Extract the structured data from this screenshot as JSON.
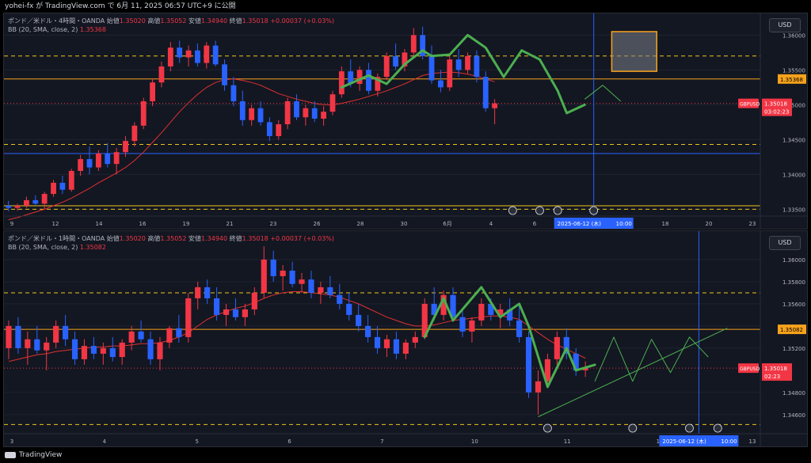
{
  "header": {
    "text": "yohei-fx が TradingView.com で 6月 11, 2025 06:57 UTC+9 に公開"
  },
  "footer": {
    "brand": "TradingView"
  },
  "colors": {
    "up": "#f23645",
    "down": "#2962ff",
    "bb": "#e03030",
    "yellow": "#f0c419",
    "orange": "#f7a21b",
    "green": "#4caf50",
    "vline": "#2962ff",
    "box": "#7b7f8a"
  },
  "chart_data": [
    {
      "type": "candlestick",
      "symbol": "ポンド／米ドル・4時間・OANDA",
      "ohlc": {
        "open_label": "始値",
        "open": "1.35020",
        "high_label": "高値",
        "high": "1.35052",
        "low_label": "安値",
        "low": "1.34940",
        "close_label": "終値",
        "close": "1.35018",
        "change": "+0.00037 (+0.03%)"
      },
      "indicator": "BB (20, SMA, close, 2)",
      "indicator_value": "1.35368",
      "currency": "USD",
      "ylim": [
        1.3347,
        1.3622
      ],
      "y_ticks": [
        "1.36000",
        "1.35500",
        "1.35000",
        "1.34500",
        "1.34000",
        "1.33500"
      ],
      "y_tick_values": [
        1.36,
        1.355,
        1.35,
        1.345,
        1.34,
        1.335
      ],
      "x_ticks": [
        "9",
        "12",
        "14",
        "16",
        "19",
        "21",
        "23",
        "26",
        "28",
        "30",
        "6月",
        "4",
        "6",
        "9",
        "16",
        "18",
        "20",
        "23"
      ],
      "price_label": "1.35368",
      "symbol_tag": "GBPUSD",
      "last_price": "1.35018",
      "countdown": "03:02:23",
      "date_tag": "2025-06-12 (木)",
      "time_tag": "10:00",
      "levels": {
        "yellow_dashed": [
          1.357,
          1.3443,
          1.335
        ],
        "orange_solid": [
          1.3537
        ],
        "blue_solid": [
          1.343
        ],
        "yellow_solid": [
          1.3355
        ],
        "red_dotted": [
          1.3502
        ]
      },
      "candles": [
        [
          1.3355,
          1.3362,
          1.3347,
          1.3352
        ],
        [
          1.3352,
          1.3358,
          1.3348,
          1.3355
        ],
        [
          1.3355,
          1.3368,
          1.3352,
          1.3363
        ],
        [
          1.3363,
          1.337,
          1.3355,
          1.3358
        ],
        [
          1.3358,
          1.3375,
          1.335,
          1.3372
        ],
        [
          1.3372,
          1.3392,
          1.3368,
          1.3388
        ],
        [
          1.3388,
          1.3398,
          1.3372,
          1.3378
        ],
        [
          1.3378,
          1.3408,
          1.3375,
          1.3405
        ],
        [
          1.3405,
          1.3428,
          1.3398,
          1.3422
        ],
        [
          1.3422,
          1.344,
          1.34,
          1.341
        ],
        [
          1.341,
          1.3435,
          1.3405,
          1.343
        ],
        [
          1.343,
          1.3445,
          1.341,
          1.3415
        ],
        [
          1.3415,
          1.3438,
          1.34,
          1.3432
        ],
        [
          1.3432,
          1.3455,
          1.3425,
          1.3448
        ],
        [
          1.3448,
          1.3475,
          1.344,
          1.347
        ],
        [
          1.347,
          1.351,
          1.3465,
          1.3505
        ],
        [
          1.3505,
          1.3538,
          1.3498,
          1.3532
        ],
        [
          1.3532,
          1.3562,
          1.3525,
          1.3555
        ],
        [
          1.3555,
          1.359,
          1.3548,
          1.3582
        ],
        [
          1.3582,
          1.3592,
          1.356,
          1.3568
        ],
        [
          1.3568,
          1.3585,
          1.3555,
          1.3578
        ],
        [
          1.3578,
          1.3588,
          1.3555,
          1.356
        ],
        [
          1.356,
          1.359,
          1.3552,
          1.3585
        ],
        [
          1.3585,
          1.3592,
          1.3555,
          1.3558
        ],
        [
          1.3558,
          1.3565,
          1.352,
          1.3528
        ],
        [
          1.3528,
          1.354,
          1.3498,
          1.3505
        ],
        [
          1.3505,
          1.352,
          1.347,
          1.3478
        ],
        [
          1.3478,
          1.35,
          1.347,
          1.3495
        ],
        [
          1.3495,
          1.3505,
          1.347,
          1.3475
        ],
        [
          1.3475,
          1.3482,
          1.3448,
          1.3455
        ],
        [
          1.3455,
          1.3478,
          1.345,
          1.3472
        ],
        [
          1.3472,
          1.351,
          1.3465,
          1.3505
        ],
        [
          1.3505,
          1.3515,
          1.3478,
          1.3482
        ],
        [
          1.3482,
          1.35,
          1.347,
          1.3495
        ],
        [
          1.3495,
          1.3505,
          1.3475,
          1.348
        ],
        [
          1.348,
          1.3498,
          1.347,
          1.349
        ],
        [
          1.349,
          1.352,
          1.3485,
          1.3515
        ],
        [
          1.3515,
          1.3555,
          1.351,
          1.3548
        ],
        [
          1.3548,
          1.3565,
          1.3525,
          1.353
        ],
        [
          1.353,
          1.3555,
          1.352,
          1.355
        ],
        [
          1.355,
          1.356,
          1.3515,
          1.352
        ],
        [
          1.352,
          1.3545,
          1.3512,
          1.354
        ],
        [
          1.354,
          1.3575,
          1.3535,
          1.357
        ],
        [
          1.357,
          1.3588,
          1.355,
          1.3555
        ],
        [
          1.3555,
          1.358,
          1.3548,
          1.3575
        ],
        [
          1.3575,
          1.361,
          1.357,
          1.36
        ],
        [
          1.36,
          1.3612,
          1.3565,
          1.357
        ],
        [
          1.357,
          1.3585,
          1.353,
          1.3535
        ],
        [
          1.3535,
          1.355,
          1.3518,
          1.3525
        ],
        [
          1.3525,
          1.357,
          1.352,
          1.3565
        ],
        [
          1.3565,
          1.358,
          1.354,
          1.355
        ],
        [
          1.355,
          1.3575,
          1.3545,
          1.357
        ],
        [
          1.357,
          1.3578,
          1.3532,
          1.354
        ],
        [
          1.354,
          1.3548,
          1.349,
          1.3495
        ],
        [
          1.3495,
          1.3508,
          1.3472,
          1.3502
        ]
      ],
      "bb_basis": [
        1.3335,
        1.3338,
        1.3342,
        1.3346,
        1.335,
        1.3355,
        1.336,
        1.3366,
        1.3373,
        1.338,
        1.3388,
        1.3395,
        1.3402,
        1.341,
        1.342,
        1.3432,
        1.3446,
        1.346,
        1.3475,
        1.349,
        1.3503,
        1.3515,
        1.3525,
        1.3532,
        1.3536,
        1.3537,
        1.3535,
        1.3532,
        1.3528,
        1.3522,
        1.3516,
        1.3512,
        1.3508,
        1.3505,
        1.3502,
        1.35,
        1.35,
        1.3502,
        1.3505,
        1.3508,
        1.3512,
        1.3516,
        1.352,
        1.3525,
        1.353,
        1.3536,
        1.3542,
        1.3545,
        1.3546,
        1.3547,
        1.3546,
        1.3544,
        1.3541,
        1.3537,
        1.3533
      ],
      "green_path": [
        [
          37,
          1.3525
        ],
        [
          40,
          1.3542
        ],
        [
          42,
          1.353
        ],
        [
          44,
          1.3558
        ],
        [
          46,
          1.3578
        ],
        [
          47,
          1.357
        ],
        [
          49,
          1.3572
        ],
        [
          51,
          1.36
        ],
        [
          53,
          1.3582
        ],
        [
          55,
          1.354
        ],
        [
          57,
          1.3578
        ],
        [
          59,
          1.3565
        ],
        [
          61,
          1.352
        ],
        [
          62,
          1.3488
        ],
        [
          64,
          1.35
        ]
      ],
      "projection": [
        [
          64,
          1.3508
        ],
        [
          66,
          1.3528
        ],
        [
          68,
          1.3505
        ]
      ],
      "box": {
        "from": 67,
        "to": 72,
        "top": 1.3605,
        "bottom": 1.3548
      },
      "vline_index": 65,
      "total_slots": 84
    },
    {
      "type": "candlestick",
      "symbol": "ポンド／米ドル・1時間・OANDA",
      "ohlc": {
        "open_label": "始値",
        "open": "1.35020",
        "high_label": "高値",
        "high": "1.35052",
        "low_label": "安値",
        "low": "1.34940",
        "close_label": "終値",
        "close": "1.35018",
        "change": "+0.00037 (+0.03%)"
      },
      "indicator": "BB (20, SMA, close, 2)",
      "indicator_value": "1.35082",
      "currency": "USD",
      "ylim": [
        1.3447,
        1.362
      ],
      "y_ticks": [
        "1.36000",
        "1.35800",
        "1.35600",
        "1.35400",
        "1.35200",
        "1.34800",
        "1.34600"
      ],
      "y_tick_values": [
        1.36,
        1.358,
        1.356,
        1.354,
        1.352,
        1.348,
        1.346
      ],
      "x_ticks": [
        "3",
        "4",
        "5",
        "6",
        "7",
        "10",
        "11",
        "12",
        "13"
      ],
      "price_label": "1.35082",
      "symbol_tag": "GBPUSD",
      "last_price": "1.35018",
      "countdown": "02:23",
      "date_tag": "2025-06-12 (木)",
      "time_tag": "10:00",
      "levels": {
        "yellow_dashed": [
          1.357,
          1.3451
        ],
        "orange_solid": [
          1.3537
        ],
        "red_dotted": [
          1.3502
        ]
      },
      "candles": [
        [
          1.352,
          1.3545,
          1.351,
          1.354
        ],
        [
          1.354,
          1.3548,
          1.3515,
          1.352
        ],
        [
          1.352,
          1.3535,
          1.3505,
          1.3528
        ],
        [
          1.3528,
          1.354,
          1.3515,
          1.3518
        ],
        [
          1.3518,
          1.353,
          1.35,
          1.3525
        ],
        [
          1.3525,
          1.3545,
          1.352,
          1.354
        ],
        [
          1.354,
          1.355,
          1.3522,
          1.3528
        ],
        [
          1.3528,
          1.3535,
          1.3505,
          1.351
        ],
        [
          1.351,
          1.3528,
          1.3505,
          1.3522
        ],
        [
          1.3522,
          1.353,
          1.351,
          1.3515
        ],
        [
          1.3515,
          1.3525,
          1.3505,
          1.352
        ],
        [
          1.352,
          1.353,
          1.3508,
          1.3512
        ],
        [
          1.3512,
          1.3528,
          1.3505,
          1.3525
        ],
        [
          1.3525,
          1.354,
          1.3518,
          1.3535
        ],
        [
          1.3535,
          1.3545,
          1.3525,
          1.3528
        ],
        [
          1.3528,
          1.3535,
          1.3505,
          1.351
        ],
        [
          1.351,
          1.353,
          1.35,
          1.3525
        ],
        [
          1.3525,
          1.354,
          1.352,
          1.3538
        ],
        [
          1.3538,
          1.355,
          1.3525,
          1.353
        ],
        [
          1.353,
          1.357,
          1.3525,
          1.3565
        ],
        [
          1.3565,
          1.358,
          1.3555,
          1.3575
        ],
        [
          1.3575,
          1.3582,
          1.356,
          1.3565
        ],
        [
          1.3565,
          1.3575,
          1.3545,
          1.355
        ],
        [
          1.355,
          1.356,
          1.354,
          1.3555
        ],
        [
          1.3555,
          1.3565,
          1.3545,
          1.3548
        ],
        [
          1.3548,
          1.356,
          1.354,
          1.3555
        ],
        [
          1.3555,
          1.3575,
          1.355,
          1.357
        ],
        [
          1.357,
          1.3612,
          1.3565,
          1.36
        ],
        [
          1.36,
          1.3608,
          1.358,
          1.3585
        ],
        [
          1.3585,
          1.3595,
          1.3572,
          1.359
        ],
        [
          1.359,
          1.3598,
          1.3575,
          1.3578
        ],
        [
          1.3578,
          1.3588,
          1.357,
          1.3582
        ],
        [
          1.3582,
          1.359,
          1.3565,
          1.357
        ],
        [
          1.357,
          1.358,
          1.356,
          1.3575
        ],
        [
          1.3575,
          1.3585,
          1.3565,
          1.3568
        ],
        [
          1.3568,
          1.3578,
          1.3555,
          1.356
        ],
        [
          1.356,
          1.357,
          1.3545,
          1.355
        ],
        [
          1.355,
          1.356,
          1.3535,
          1.354
        ],
        [
          1.354,
          1.355,
          1.3525,
          1.353
        ],
        [
          1.353,
          1.354,
          1.3515,
          1.352
        ],
        [
          1.352,
          1.3532,
          1.3512,
          1.3528
        ],
        [
          1.3528,
          1.3535,
          1.351,
          1.3515
        ],
        [
          1.3515,
          1.3528,
          1.351,
          1.3525
        ],
        [
          1.3525,
          1.3535,
          1.352,
          1.353
        ],
        [
          1.353,
          1.3565,
          1.3528,
          1.356
        ],
        [
          1.356,
          1.3575,
          1.3545,
          1.355
        ],
        [
          1.355,
          1.3572,
          1.3545,
          1.3568
        ],
        [
          1.3568,
          1.3575,
          1.3545,
          1.3548
        ],
        [
          1.3548,
          1.3555,
          1.353,
          1.3535
        ],
        [
          1.3535,
          1.3548,
          1.3525,
          1.3545
        ],
        [
          1.3545,
          1.3565,
          1.354,
          1.356
        ],
        [
          1.356,
          1.3565,
          1.3545,
          1.355
        ],
        [
          1.355,
          1.356,
          1.3538,
          1.3555
        ],
        [
          1.3555,
          1.3565,
          1.354,
          1.3545
        ],
        [
          1.3545,
          1.356,
          1.3525,
          1.353
        ],
        [
          1.353,
          1.3535,
          1.3475,
          1.348
        ],
        [
          1.348,
          1.35,
          1.346,
          1.349
        ],
        [
          1.349,
          1.3515,
          1.3485,
          1.351
        ],
        [
          1.351,
          1.3535,
          1.3505,
          1.353
        ],
        [
          1.353,
          1.3538,
          1.351,
          1.3515
        ],
        [
          1.3515,
          1.352,
          1.3495,
          1.35
        ],
        [
          1.35,
          1.3508,
          1.3494,
          1.3502
        ]
      ],
      "bb_basis": [
        1.3508,
        1.351,
        1.3512,
        1.3514,
        1.3515,
        1.3517,
        1.3518,
        1.3519,
        1.352,
        1.3521,
        1.3521,
        1.3522,
        1.3522,
        1.3523,
        1.3524,
        1.3524,
        1.3525,
        1.3527,
        1.353,
        1.3534,
        1.354,
        1.3546,
        1.355,
        1.3553,
        1.3556,
        1.3558,
        1.3561,
        1.3565,
        1.3568,
        1.357,
        1.3571,
        1.3571,
        1.357,
        1.3569,
        1.3568,
        1.3566,
        1.3563,
        1.356,
        1.3556,
        1.3552,
        1.3548,
        1.3545,
        1.3542,
        1.354,
        1.354,
        1.3541,
        1.3543,
        1.3545,
        1.3546,
        1.3547,
        1.3548,
        1.3549,
        1.3549,
        1.3548,
        1.3546,
        1.354,
        1.3534,
        1.3528,
        1.3523,
        1.3519,
        1.3515,
        1.3511
      ],
      "green_path": [
        [
          44,
          1.353
        ],
        [
          46,
          1.3565
        ],
        [
          47,
          1.3545
        ],
        [
          50,
          1.3575
        ],
        [
          52,
          1.3548
        ],
        [
          54,
          1.356
        ],
        [
          55,
          1.354
        ],
        [
          57,
          1.3485
        ],
        [
          59,
          1.352
        ],
        [
          60,
          1.35
        ],
        [
          62,
          1.3505
        ]
      ],
      "projection": [
        [
          62,
          1.349
        ],
        [
          64,
          1.353
        ],
        [
          66,
          1.349
        ],
        [
          68,
          1.3528
        ],
        [
          70,
          1.3498
        ],
        [
          72,
          1.353
        ],
        [
          74,
          1.3512
        ]
      ],
      "trendline": [
        [
          56,
          1.3458
        ],
        [
          76,
          1.3538
        ]
      ],
      "vline_index": 73,
      "total_slots": 80
    }
  ]
}
